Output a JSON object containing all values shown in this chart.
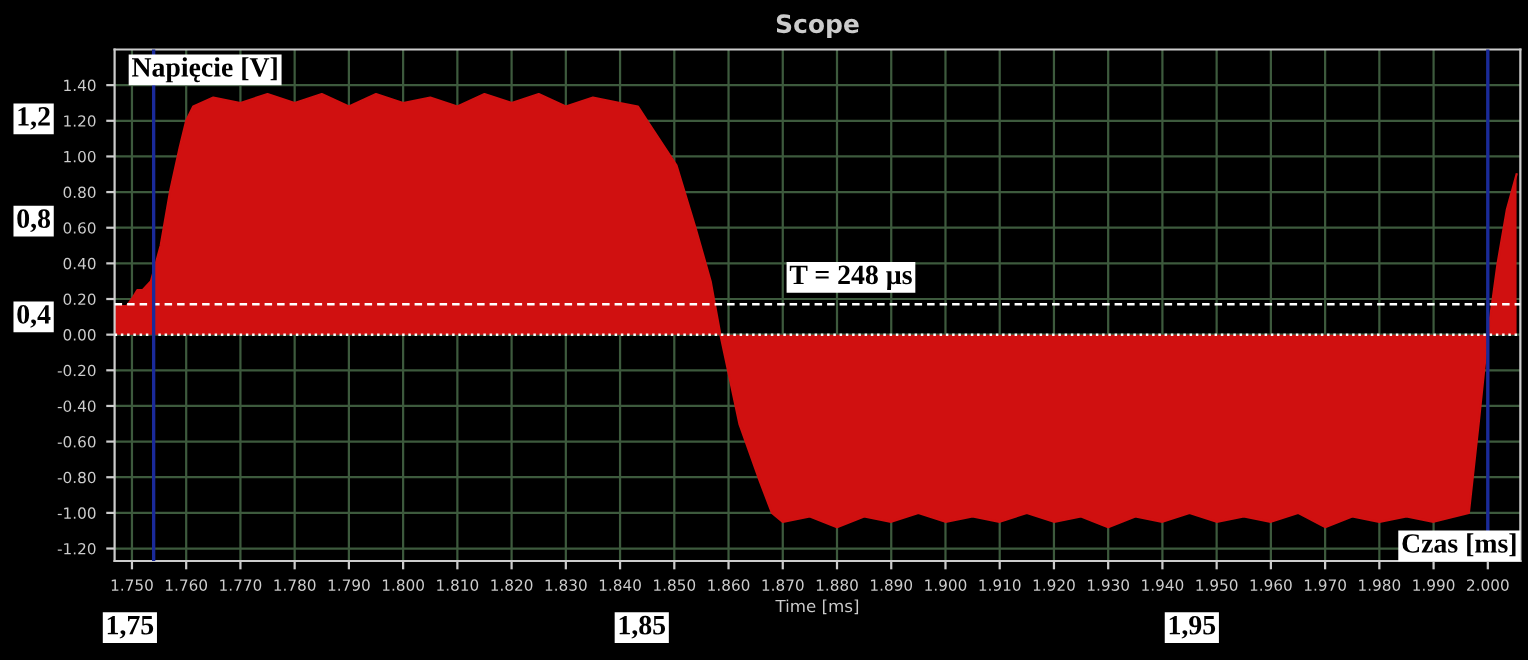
{
  "chart_data": {
    "type": "area",
    "title": "Scope",
    "xlabel": "Time [ms]",
    "ylabel": "Napięcie [V]",
    "x": [
      1.7468,
      1.748,
      1.749,
      1.75,
      1.751,
      1.752,
      1.7535,
      1.7553,
      1.757,
      1.7588,
      1.76,
      1.7613,
      1.765,
      1.77,
      1.775,
      1.78,
      1.785,
      1.79,
      1.795,
      1.8,
      1.805,
      1.81,
      1.815,
      1.82,
      1.825,
      1.83,
      1.835,
      1.84,
      1.8433,
      1.845,
      1.8504,
      1.8539,
      1.8567,
      1.8585,
      1.8599,
      1.862,
      1.8655,
      1.868,
      1.87,
      1.875,
      1.88,
      1.885,
      1.89,
      1.895,
      1.9,
      1.905,
      1.91,
      1.915,
      1.92,
      1.925,
      1.93,
      1.935,
      1.94,
      1.945,
      1.95,
      1.955,
      1.96,
      1.965,
      1.97,
      1.975,
      1.98,
      1.985,
      1.99,
      1.9965,
      1.9983,
      2.0,
      2.0018,
      2.0035,
      2.0053
    ],
    "series": [
      {
        "color": "#d01010",
        "values": [
          0.16,
          0.16,
          0.16,
          0.2,
          0.25,
          0.25,
          0.3,
          0.5,
          0.8,
          1.05,
          1.2,
          1.28,
          1.33,
          1.3,
          1.35,
          1.3,
          1.35,
          1.28,
          1.35,
          1.3,
          1.33,
          1.28,
          1.35,
          1.3,
          1.35,
          1.28,
          1.33,
          1.3,
          1.28,
          1.2,
          0.95,
          0.6,
          0.3,
          0.0,
          -0.2,
          -0.5,
          -0.8,
          -1.0,
          -1.05,
          -1.02,
          -1.08,
          -1.02,
          -1.05,
          -1.0,
          -1.05,
          -1.02,
          -1.05,
          -1.0,
          -1.05,
          -1.02,
          -1.08,
          -1.02,
          -1.05,
          -1.0,
          -1.05,
          -1.02,
          -1.05,
          -1.0,
          -1.08,
          -1.02,
          -1.05,
          -1.02,
          -1.05,
          -1.0,
          -0.5,
          0.0,
          0.4,
          0.7,
          0.9
        ]
      }
    ],
    "xlim": [
      1.7468,
      2.006
    ],
    "ylim": [
      -1.27,
      1.6
    ],
    "xticks": [
      {
        "value": 1.75,
        "label": "1.750"
      },
      {
        "value": 1.76,
        "label": "1.760"
      },
      {
        "value": 1.77,
        "label": "1.770"
      },
      {
        "value": 1.78,
        "label": "1.780"
      },
      {
        "value": 1.79,
        "label": "1.790"
      },
      {
        "value": 1.8,
        "label": "1.800"
      },
      {
        "value": 1.81,
        "label": "1.810"
      },
      {
        "value": 1.82,
        "label": "1.820"
      },
      {
        "value": 1.83,
        "label": "1.830"
      },
      {
        "value": 1.84,
        "label": "1.840"
      },
      {
        "value": 1.85,
        "label": "1.850"
      },
      {
        "value": 1.86,
        "label": "1.860"
      },
      {
        "value": 1.87,
        "label": "1.870"
      },
      {
        "value": 1.88,
        "label": "1.880"
      },
      {
        "value": 1.89,
        "label": "1.890"
      },
      {
        "value": 1.9,
        "label": "1.900"
      },
      {
        "value": 1.91,
        "label": "1.910"
      },
      {
        "value": 1.92,
        "label": "1.920"
      },
      {
        "value": 1.93,
        "label": "1.930"
      },
      {
        "value": 1.94,
        "label": "1.940"
      },
      {
        "value": 1.95,
        "label": "1.950"
      },
      {
        "value": 1.96,
        "label": "1.960"
      },
      {
        "value": 1.97,
        "label": "1.970"
      },
      {
        "value": 1.98,
        "label": "1.980"
      },
      {
        "value": 1.99,
        "label": "1.990"
      },
      {
        "value": 2.0,
        "label": "2.000"
      }
    ],
    "yticks": [
      {
        "value": -1.2,
        "label": "-1.20"
      },
      {
        "value": -1.0,
        "label": "-1.00"
      },
      {
        "value": -0.8,
        "label": "-0.80"
      },
      {
        "value": -0.6,
        "label": "-0.60"
      },
      {
        "value": -0.4,
        "label": "-0.40"
      },
      {
        "value": -0.2,
        "label": "-0.20"
      },
      {
        "value": 0,
        "label": "0.00"
      },
      {
        "value": 0.2,
        "label": "0.20"
      },
      {
        "value": 0.4,
        "label": "0.40"
      },
      {
        "value": 0.6,
        "label": "0.60"
      },
      {
        "value": 0.8,
        "label": "0.80"
      },
      {
        "value": 1.0,
        "label": "1.00"
      },
      {
        "value": 1.2,
        "label": "1.20"
      },
      {
        "value": 1.4,
        "label": "1.40"
      }
    ],
    "grid": true,
    "legend": false,
    "ref_lines": [
      {
        "axis": "y",
        "value": 0.17,
        "color": "#ffffff",
        "line_style": "dashed"
      },
      {
        "axis": "y",
        "value": 0,
        "color": "#ffffff",
        "line_style": "dotted"
      },
      {
        "axis": "x",
        "value": 1.754,
        "color": "#1a2a9a",
        "line_style": "solid"
      },
      {
        "axis": "x",
        "value": 2.0,
        "color": "#1a2a9a",
        "line_style": "solid"
      }
    ],
    "annotations": [
      "T = 248 µs",
      "1,2",
      "0,8",
      "0,4",
      "1,75",
      "1,85",
      "1,95",
      "Czas [ms]"
    ]
  }
}
